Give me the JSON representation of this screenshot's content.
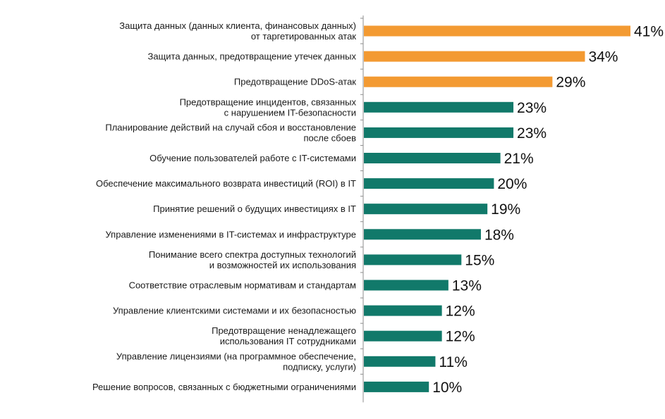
{
  "chart_data": {
    "type": "bar",
    "orientation": "horizontal",
    "title": "",
    "xlabel": "",
    "ylabel": "",
    "xlim": [
      0,
      41
    ],
    "grid": false,
    "legend": "none",
    "value_suffix": "%",
    "colors": {
      "highlight": "#F39A32",
      "default": "#11796A",
      "axis": "#8c8c8c"
    },
    "categories": [
      [
        "Защита данных (данных клиента, финансовых данных)",
        "от таргетированных атак"
      ],
      [
        "Защита данных, предотвращение утечек данных"
      ],
      [
        "Предотвращение DDoS-атак"
      ],
      [
        "Предотвращение инцидентов, связанных",
        "с нарушением IT-безопасности"
      ],
      [
        "Планирование действий на случай сбоя и восстановление",
        "после сбоев"
      ],
      [
        "Обучение пользователей работе с IT-системами"
      ],
      [
        "Обеспечение максимального возврата инвестиций (ROI) в IT"
      ],
      [
        "Принятие решений о будущих инвестициях в IT"
      ],
      [
        "Управление изменениями в IT-системах и инфраструктуре"
      ],
      [
        "Понимание всего спектра доступных технологий",
        "и возможностей их использования"
      ],
      [
        "Соответствие отраслевым нормативам и стандартам"
      ],
      [
        "Управление клиентскими системами и их безопасностью"
      ],
      [
        "Предотвращение ненадлежащего",
        "использования IT сотрудниками"
      ],
      [
        "Управление лицензиями (на программное обеспечение,",
        "подписку, услуги)"
      ],
      [
        "Решение вопросов, связанных с бюджетными ограничениями"
      ]
    ],
    "values": [
      41,
      34,
      29,
      23,
      23,
      21,
      20,
      19,
      18,
      15,
      13,
      12,
      12,
      11,
      10
    ],
    "highlighted": [
      0,
      1,
      2
    ]
  }
}
